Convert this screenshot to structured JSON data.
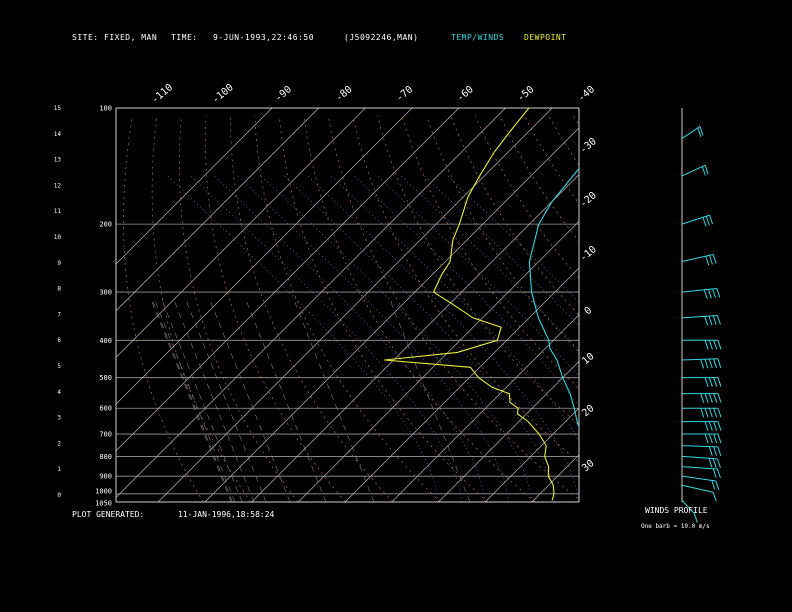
{
  "header": {
    "site_label": "SITE:",
    "site_value": "FIXED, MAN",
    "time_label": "TIME:",
    "time_value": "9-JUN-1993,22:46:50",
    "station": "(J5092246,MAN)",
    "temp_legend": "TEMP/WINDS",
    "dew_legend": "DEWPOINT",
    "temp_color": "#33d6e0",
    "dew_color": "#ecec3a"
  },
  "footer": {
    "plot_label": "PLOT GENERATED:",
    "plot_value": "11-JAN-1996,18:58:24",
    "winds_title": "WINDS PROFILE",
    "winds_scale": "One barb = 10.0 m/s"
  },
  "chart_data": {
    "type": "line",
    "pressure_ticks": [
      "100",
      "200",
      "300",
      "400",
      "500",
      "600",
      "700",
      "800",
      "900",
      "1000",
      "1050"
    ],
    "height_ticks": [
      "0",
      "1",
      "2",
      "3",
      "4",
      "5",
      "6",
      "7",
      "8",
      "9",
      "10",
      "11",
      "12",
      "13",
      "14",
      "15"
    ],
    "top_temp_ticks": [
      "-110",
      "-100",
      "-90",
      "-80",
      "-70",
      "-60",
      "-50",
      "-40"
    ],
    "right_temp_ticks": [
      "-30",
      "-20",
      "-10",
      "0",
      "10",
      "20",
      "30"
    ],
    "pressure_range": [
      1050,
      100
    ],
    "series": [
      {
        "name": "TEMP/WINDS",
        "color": "#33d6e0",
        "points": [
          [
            1040,
            13
          ],
          [
            1000,
            10
          ],
          [
            950,
            8
          ],
          [
            900,
            6.5
          ],
          [
            850,
            4.5
          ],
          [
            800,
            2
          ],
          [
            750,
            -1
          ],
          [
            700,
            -4
          ],
          [
            650,
            -7.5
          ],
          [
            600,
            -11
          ],
          [
            550,
            -15
          ],
          [
            500,
            -20
          ],
          [
            450,
            -25
          ],
          [
            420,
            -29
          ],
          [
            400,
            -31
          ],
          [
            350,
            -38
          ],
          [
            300,
            -45
          ],
          [
            250,
            -52
          ],
          [
            200,
            -58
          ],
          [
            175,
            -60
          ],
          [
            150,
            -61
          ],
          [
            130,
            -62
          ],
          [
            115,
            -63
          ],
          [
            100,
            -64
          ]
        ]
      },
      {
        "name": "DEWPOINT",
        "color": "#ecec3a",
        "points": [
          [
            1040,
            4
          ],
          [
            1000,
            3
          ],
          [
            950,
            1
          ],
          [
            900,
            -2
          ],
          [
            850,
            -4
          ],
          [
            800,
            -7
          ],
          [
            750,
            -9
          ],
          [
            700,
            -13
          ],
          [
            650,
            -18
          ],
          [
            620,
            -22
          ],
          [
            600,
            -23
          ],
          [
            580,
            -26
          ],
          [
            550,
            -28
          ],
          [
            530,
            -33
          ],
          [
            500,
            -38
          ],
          [
            470,
            -42
          ],
          [
            450,
            -62
          ],
          [
            430,
            -48
          ],
          [
            400,
            -42
          ],
          [
            370,
            -44
          ],
          [
            350,
            -52
          ],
          [
            320,
            -60
          ],
          [
            300,
            -66
          ],
          [
            270,
            -68
          ],
          [
            250,
            -69
          ],
          [
            220,
            -73
          ],
          [
            200,
            -75
          ],
          [
            170,
            -79
          ],
          [
            150,
            -81
          ],
          [
            130,
            -83
          ],
          [
            115,
            -84
          ],
          [
            100,
            -85
          ]
        ]
      }
    ],
    "wind_barbs": [
      {
        "p": 1040,
        "dir": 200,
        "spd": 5
      },
      {
        "p": 950,
        "dir": 240,
        "spd": 10
      },
      {
        "p": 900,
        "dir": 250,
        "spd": 15
      },
      {
        "p": 850,
        "dir": 260,
        "spd": 20
      },
      {
        "p": 800,
        "dir": 260,
        "spd": 25
      },
      {
        "p": 750,
        "dir": 265,
        "spd": 30
      },
      {
        "p": 700,
        "dir": 270,
        "spd": 35
      },
      {
        "p": 650,
        "dir": 270,
        "spd": 40
      },
      {
        "p": 600,
        "dir": 270,
        "spd": 45
      },
      {
        "p": 550,
        "dir": 270,
        "spd": 45
      },
      {
        "p": 500,
        "dir": 270,
        "spd": 40
      },
      {
        "p": 450,
        "dir": 275,
        "spd": 45
      },
      {
        "p": 400,
        "dir": 270,
        "spd": 40
      },
      {
        "p": 350,
        "dir": 280,
        "spd": 40
      },
      {
        "p": 300,
        "dir": 285,
        "spd": 35
      },
      {
        "p": 250,
        "dir": 300,
        "spd": 30
      },
      {
        "p": 200,
        "dir": 310,
        "spd": 25
      },
      {
        "p": 150,
        "dir": 320,
        "spd": 20
      },
      {
        "p": 120,
        "dir": 330,
        "spd": 15
      }
    ]
  }
}
